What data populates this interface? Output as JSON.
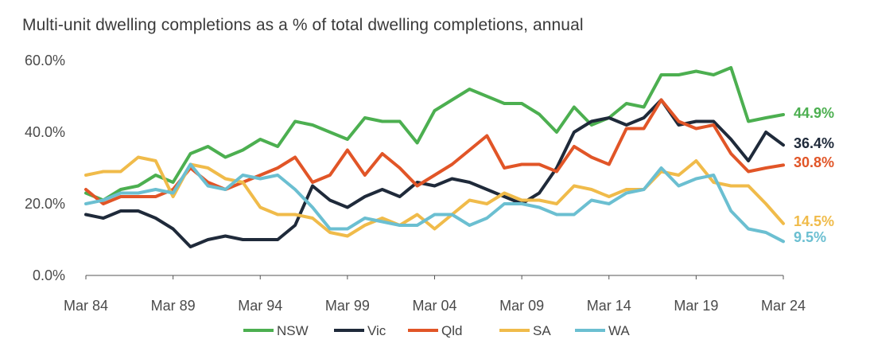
{
  "chart_data": {
    "type": "line",
    "title": "Multi-unit dwelling completions as a % of total dwelling completions, annual",
    "xlabel": "",
    "ylabel": "",
    "ylim": [
      0,
      60
    ],
    "xlim": [
      1984.0,
      2024.0
    ],
    "y_ticks": [
      "0.0%",
      "20.0%",
      "40.0%",
      "60.0%"
    ],
    "y_tick_values": [
      0,
      20,
      40,
      60
    ],
    "x_ticks": [
      "Mar 84",
      "Mar 89",
      "Mar 94",
      "Mar 99",
      "Mar 04",
      "Mar 09",
      "Mar 14",
      "Mar 19",
      "Mar 24"
    ],
    "x_tick_values": [
      1984,
      1989,
      1994,
      1999,
      2004,
      2009,
      2014,
      2019,
      2024
    ],
    "grid": false,
    "legend_position": "bottom",
    "series": [
      {
        "name": "NSW",
        "color": "#4caf50",
        "end_label": "44.9%",
        "x": [
          1984,
          1985,
          1986,
          1987,
          1988,
          1989,
          1990,
          1991,
          1992,
          1993,
          1994,
          1995,
          1996,
          1997,
          1998,
          1999,
          2000,
          2001,
          2002,
          2003,
          2004,
          2005,
          2006,
          2007,
          2008,
          2009,
          2010,
          2011,
          2012,
          2013,
          2014,
          2015,
          2016,
          2017,
          2018,
          2019,
          2020,
          2021,
          2022,
          2023,
          2024
        ],
        "values": [
          23,
          21,
          24,
          25,
          28,
          26,
          34,
          36,
          33,
          35,
          38,
          36,
          43,
          42,
          40,
          38,
          44,
          43,
          43,
          37,
          46,
          49,
          52,
          50,
          48,
          48,
          45,
          40,
          47,
          42,
          44,
          48,
          47,
          56,
          56,
          57,
          56,
          58,
          43,
          44,
          44.9
        ]
      },
      {
        "name": "Vic",
        "color": "#1f2a3a",
        "end_label": "36.4%",
        "x": [
          1984,
          1985,
          1986,
          1987,
          1988,
          1989,
          1990,
          1991,
          1992,
          1993,
          1994,
          1995,
          1996,
          1997,
          1998,
          1999,
          2000,
          2001,
          2002,
          2003,
          2004,
          2005,
          2006,
          2007,
          2008,
          2009,
          2010,
          2011,
          2012,
          2013,
          2014,
          2015,
          2016,
          2017,
          2018,
          2019,
          2020,
          2021,
          2022,
          2023,
          2024
        ],
        "values": [
          17,
          16,
          18,
          18,
          16,
          13,
          8,
          10,
          11,
          10,
          10,
          10,
          14,
          25,
          21,
          19,
          22,
          24,
          22,
          26,
          25,
          27,
          26,
          24,
          22,
          20,
          23,
          30,
          40,
          43,
          44,
          42,
          44,
          49,
          42,
          43,
          43,
          38,
          32,
          40,
          36.4
        ]
      },
      {
        "name": "Qld",
        "color": "#e15527",
        "end_label": "30.8%",
        "x": [
          1984,
          1985,
          1986,
          1987,
          1988,
          1989,
          1990,
          1991,
          1992,
          1993,
          1994,
          1995,
          1996,
          1997,
          1998,
          1999,
          2000,
          2001,
          2002,
          2003,
          2004,
          2005,
          2006,
          2007,
          2008,
          2009,
          2010,
          2011,
          2012,
          2013,
          2014,
          2015,
          2016,
          2017,
          2018,
          2019,
          2020,
          2021,
          2022,
          2023,
          2024
        ],
        "values": [
          24,
          20,
          22,
          22,
          22,
          24,
          30,
          26,
          24,
          26,
          28,
          30,
          33,
          26,
          28,
          35,
          28,
          34,
          30,
          25,
          28,
          31,
          35,
          39,
          30,
          31,
          31,
          29,
          36,
          33,
          31,
          41,
          41,
          49,
          43,
          41,
          42,
          34,
          29,
          30,
          30.8
        ]
      },
      {
        "name": "SA",
        "color": "#f0bb4a",
        "end_label": "14.5%",
        "x": [
          1984,
          1985,
          1986,
          1987,
          1988,
          1989,
          1990,
          1991,
          1992,
          1993,
          1994,
          1995,
          1996,
          1997,
          1998,
          1999,
          2000,
          2001,
          2002,
          2003,
          2004,
          2005,
          2006,
          2007,
          2008,
          2009,
          2010,
          2011,
          2012,
          2013,
          2014,
          2015,
          2016,
          2017,
          2018,
          2019,
          2020,
          2021,
          2022,
          2023,
          2024
        ],
        "values": [
          28,
          29,
          29,
          33,
          32,
          22,
          31,
          30,
          27,
          26,
          19,
          17,
          17,
          16,
          12,
          11,
          14,
          16,
          14,
          17,
          13,
          17,
          21,
          20,
          23,
          21,
          21,
          20,
          25,
          24,
          22,
          24,
          24,
          29,
          28,
          32,
          26,
          25,
          25,
          20,
          14.5
        ]
      },
      {
        "name": "WA",
        "color": "#6bbfd1",
        "end_label": "9.5%",
        "x": [
          1984,
          1985,
          1986,
          1987,
          1988,
          1989,
          1990,
          1991,
          1992,
          1993,
          1994,
          1995,
          1996,
          1997,
          1998,
          1999,
          2000,
          2001,
          2002,
          2003,
          2004,
          2005,
          2006,
          2007,
          2008,
          2009,
          2010,
          2011,
          2012,
          2013,
          2014,
          2015,
          2016,
          2017,
          2018,
          2019,
          2020,
          2021,
          2022,
          2023,
          2024
        ],
        "values": [
          20,
          21,
          23,
          23,
          24,
          23,
          31,
          25,
          24,
          28,
          27,
          28,
          24,
          19,
          13,
          13,
          16,
          15,
          14,
          14,
          17,
          17,
          14,
          16,
          20,
          20,
          19,
          17,
          17,
          21,
          20,
          23,
          24,
          30,
          25,
          27,
          28,
          18,
          13,
          12,
          9.5
        ]
      }
    ]
  }
}
